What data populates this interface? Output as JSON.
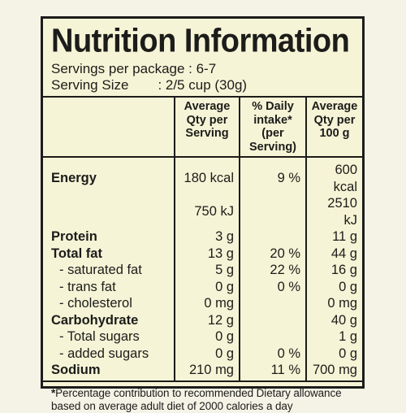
{
  "title": "Nutrition Information",
  "servings_per_package": "Servings per package : 6-7",
  "serving_size_label": "Serving Size",
  "serving_size_value": ": 2/5 cup (30g)",
  "columns": [
    "Average Qty per Serving",
    "% Daily intake* (per Serving)",
    "Average Qty per 100 g"
  ],
  "rows": [
    {
      "label": "Energy",
      "bold": true,
      "indent": false,
      "serving": "180 kcal",
      "daily": "9 %",
      "per100": "600 kcal"
    },
    {
      "label": "",
      "bold": false,
      "indent": false,
      "serving": "750 kJ",
      "daily": "",
      "per100": "2510 kJ"
    },
    {
      "label": "Protein",
      "bold": true,
      "indent": false,
      "serving": "3 g",
      "daily": "",
      "per100": "11 g"
    },
    {
      "label": "Total fat",
      "bold": true,
      "indent": false,
      "serving": "13 g",
      "daily": "20 %",
      "per100": "44 g"
    },
    {
      "label": "- saturated fat",
      "bold": false,
      "indent": true,
      "serving": "5 g",
      "daily": "22 %",
      "per100": "16 g"
    },
    {
      "label": "- trans fat",
      "bold": false,
      "indent": true,
      "serving": "0 g",
      "daily": "0 %",
      "per100": "0 g"
    },
    {
      "label": "- cholesterol",
      "bold": false,
      "indent": true,
      "serving": "0 mg",
      "daily": "",
      "per100": "0 mg"
    },
    {
      "label": "Carbohydrate",
      "bold": true,
      "indent": false,
      "serving": "12 g",
      "daily": "",
      "per100": "40 g"
    },
    {
      "label": "- Total sugars",
      "bold": false,
      "indent": true,
      "serving": "0 g",
      "daily": "",
      "per100": "1 g"
    },
    {
      "label": "- added sugars",
      "bold": false,
      "indent": true,
      "serving": "0 g",
      "daily": "0 %",
      "per100": "0 g"
    },
    {
      "label": "Sodium",
      "bold": true,
      "indent": false,
      "serving": "210 mg",
      "daily": "11 %",
      "per100": "700 mg"
    }
  ],
  "footnote_star": "*",
  "footnote": "Percentage contribution to recommended Dietary allowance based on average adult diet of 2000 calories a day"
}
